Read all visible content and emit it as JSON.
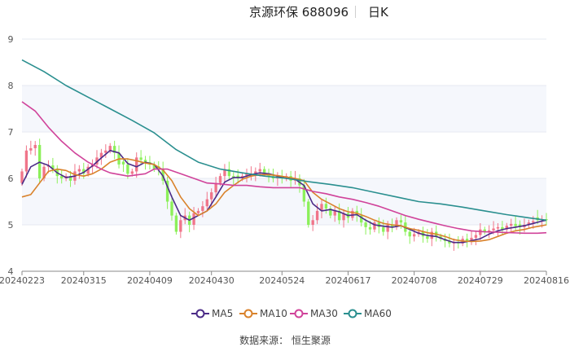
{
  "header": {
    "title": "京源环保 688096",
    "period": "日K"
  },
  "source": "数据来源： 恒生聚源",
  "colors": {
    "up": "#f0758a",
    "down": "#8cf05a",
    "grid": "#e6e9f2",
    "band": "#f5f7fc",
    "axis": "#8a8a8a"
  },
  "chart_data": {
    "type": "candlestick",
    "title": "",
    "ylim": [
      4,
      9
    ],
    "yticks": [
      4,
      5,
      6,
      7,
      8,
      9
    ],
    "xtick_labels": [
      "20240223",
      "20240315",
      "20240409",
      "20240430",
      "20240524",
      "20240617",
      "20240708",
      "20240729",
      "20240816"
    ],
    "xtick_index": [
      0,
      14,
      29,
      43,
      59,
      74,
      89,
      104,
      119
    ],
    "legend_placement": "bottom-center",
    "closes": [
      6.15,
      6.6,
      6.65,
      6.72,
      6.0,
      6.25,
      6.28,
      6.2,
      6.05,
      6.0,
      6.05,
      5.95,
      6.15,
      6.2,
      6.1,
      6.25,
      6.3,
      6.45,
      6.55,
      6.6,
      6.7,
      6.55,
      6.3,
      6.3,
      6.1,
      6.15,
      6.45,
      6.4,
      6.35,
      6.3,
      6.2,
      6.2,
      5.95,
      5.5,
      5.2,
      4.85,
      5.1,
      5.2,
      5.0,
      5.25,
      5.3,
      5.4,
      5.55,
      5.7,
      5.9,
      6.05,
      6.2,
      6.05,
      6.0,
      6.0,
      6.05,
      6.1,
      6.1,
      6.15,
      6.2,
      6.1,
      6.05,
      6.0,
      6.05,
      6.0,
      6.05,
      5.95,
      6.0,
      5.85,
      5.5,
      5.0,
      5.1,
      5.3,
      5.45,
      5.35,
      5.2,
      5.3,
      5.1,
      5.25,
      5.15,
      5.3,
      5.2,
      5.05,
      4.95,
      4.9,
      5.05,
      4.95,
      4.85,
      5.0,
      4.95,
      5.1,
      5.05,
      4.85,
      4.75,
      4.8,
      4.85,
      4.75,
      4.7,
      4.85,
      4.75,
      4.7,
      4.65,
      4.6,
      4.62,
      4.6,
      4.7,
      4.65,
      4.72,
      4.78,
      4.9,
      4.85,
      4.88,
      4.92,
      4.95,
      4.9,
      4.98,
      5.02,
      4.97,
      4.95,
      5.0,
      5.05,
      5.08,
      5.1,
      5.12,
      5.1
    ],
    "ma_labels": [
      "MA5",
      "MA10",
      "MA30",
      "MA60"
    ],
    "series": [
      {
        "name": "MA5",
        "color": "#4b2b87",
        "points": [
          [
            0,
            5.87
          ],
          [
            2,
            6.25
          ],
          [
            4,
            6.35
          ],
          [
            6,
            6.28
          ],
          [
            8,
            6.12
          ],
          [
            10,
            6.02
          ],
          [
            12,
            6.05
          ],
          [
            14,
            6.13
          ],
          [
            16,
            6.27
          ],
          [
            18,
            6.44
          ],
          [
            20,
            6.6
          ],
          [
            22,
            6.55
          ],
          [
            24,
            6.32
          ],
          [
            26,
            6.25
          ],
          [
            28,
            6.35
          ],
          [
            30,
            6.3
          ],
          [
            32,
            6.05
          ],
          [
            34,
            5.6
          ],
          [
            36,
            5.2
          ],
          [
            38,
            5.1
          ],
          [
            40,
            5.2
          ],
          [
            42,
            5.3
          ],
          [
            44,
            5.6
          ],
          [
            46,
            5.92
          ],
          [
            48,
            6.02
          ],
          [
            50,
            6.02
          ],
          [
            52,
            6.08
          ],
          [
            54,
            6.12
          ],
          [
            56,
            6.1
          ],
          [
            58,
            6.05
          ],
          [
            60,
            6.0
          ],
          [
            62,
            5.98
          ],
          [
            64,
            5.85
          ],
          [
            66,
            5.45
          ],
          [
            68,
            5.3
          ],
          [
            70,
            5.33
          ],
          [
            72,
            5.28
          ],
          [
            74,
            5.2
          ],
          [
            76,
            5.22
          ],
          [
            78,
            5.1
          ],
          [
            80,
            5.0
          ],
          [
            82,
            4.97
          ],
          [
            84,
            4.95
          ],
          [
            86,
            4.98
          ],
          [
            88,
            4.9
          ],
          [
            90,
            4.82
          ],
          [
            92,
            4.77
          ],
          [
            94,
            4.75
          ],
          [
            96,
            4.68
          ],
          [
            98,
            4.62
          ],
          [
            100,
            4.62
          ],
          [
            102,
            4.66
          ],
          [
            104,
            4.7
          ],
          [
            106,
            4.8
          ],
          [
            108,
            4.87
          ],
          [
            110,
            4.92
          ],
          [
            112,
            4.95
          ],
          [
            114,
            4.98
          ],
          [
            116,
            5.03
          ],
          [
            118,
            5.08
          ],
          [
            119,
            5.1
          ]
        ]
      },
      {
        "name": "MA10",
        "color": "#d9822b",
        "points": [
          [
            0,
            5.6
          ],
          [
            2,
            5.65
          ],
          [
            4,
            5.9
          ],
          [
            6,
            6.15
          ],
          [
            8,
            6.2
          ],
          [
            10,
            6.17
          ],
          [
            12,
            6.08
          ],
          [
            14,
            6.05
          ],
          [
            16,
            6.1
          ],
          [
            18,
            6.2
          ],
          [
            20,
            6.35
          ],
          [
            22,
            6.42
          ],
          [
            24,
            6.42
          ],
          [
            26,
            6.38
          ],
          [
            28,
            6.33
          ],
          [
            30,
            6.3
          ],
          [
            32,
            6.18
          ],
          [
            34,
            5.95
          ],
          [
            36,
            5.6
          ],
          [
            38,
            5.35
          ],
          [
            40,
            5.2
          ],
          [
            42,
            5.3
          ],
          [
            44,
            5.45
          ],
          [
            46,
            5.7
          ],
          [
            48,
            5.85
          ],
          [
            50,
            5.98
          ],
          [
            52,
            6.05
          ],
          [
            54,
            6.08
          ],
          [
            56,
            6.08
          ],
          [
            58,
            6.06
          ],
          [
            60,
            6.03
          ],
          [
            62,
            6.0
          ],
          [
            64,
            5.95
          ],
          [
            66,
            5.7
          ],
          [
            68,
            5.55
          ],
          [
            70,
            5.45
          ],
          [
            72,
            5.35
          ],
          [
            74,
            5.28
          ],
          [
            76,
            5.25
          ],
          [
            78,
            5.18
          ],
          [
            80,
            5.1
          ],
          [
            82,
            5.03
          ],
          [
            84,
            5.0
          ],
          [
            86,
            4.98
          ],
          [
            88,
            4.92
          ],
          [
            90,
            4.88
          ],
          [
            92,
            4.83
          ],
          [
            94,
            4.8
          ],
          [
            96,
            4.75
          ],
          [
            98,
            4.68
          ],
          [
            100,
            4.65
          ],
          [
            102,
            4.64
          ],
          [
            104,
            4.65
          ],
          [
            106,
            4.68
          ],
          [
            108,
            4.75
          ],
          [
            110,
            4.82
          ],
          [
            112,
            4.87
          ],
          [
            114,
            4.9
          ],
          [
            116,
            4.95
          ],
          [
            118,
            4.98
          ],
          [
            119,
            5.0
          ]
        ]
      },
      {
        "name": "MA30",
        "color": "#d0439a",
        "points": [
          [
            0,
            7.65
          ],
          [
            3,
            7.45
          ],
          [
            6,
            7.1
          ],
          [
            9,
            6.8
          ],
          [
            12,
            6.55
          ],
          [
            15,
            6.35
          ],
          [
            18,
            6.2
          ],
          [
            20,
            6.12
          ],
          [
            24,
            6.05
          ],
          [
            28,
            6.1
          ],
          [
            30,
            6.2
          ],
          [
            33,
            6.2
          ],
          [
            36,
            6.1
          ],
          [
            39,
            6.0
          ],
          [
            42,
            5.9
          ],
          [
            45,
            5.88
          ],
          [
            48,
            5.85
          ],
          [
            51,
            5.85
          ],
          [
            54,
            5.82
          ],
          [
            57,
            5.8
          ],
          [
            60,
            5.8
          ],
          [
            63,
            5.8
          ],
          [
            66,
            5.72
          ],
          [
            69,
            5.67
          ],
          [
            72,
            5.6
          ],
          [
            75,
            5.55
          ],
          [
            78,
            5.48
          ],
          [
            81,
            5.4
          ],
          [
            84,
            5.3
          ],
          [
            87,
            5.2
          ],
          [
            90,
            5.12
          ],
          [
            93,
            5.05
          ],
          [
            96,
            4.98
          ],
          [
            99,
            4.92
          ],
          [
            102,
            4.87
          ],
          [
            105,
            4.85
          ],
          [
            108,
            4.84
          ],
          [
            111,
            4.83
          ],
          [
            114,
            4.82
          ],
          [
            117,
            4.82
          ],
          [
            119,
            4.83
          ]
        ]
      },
      {
        "name": "MA60",
        "color": "#2a8f8f",
        "points": [
          [
            0,
            8.55
          ],
          [
            5,
            8.3
          ],
          [
            10,
            8.0
          ],
          [
            15,
            7.75
          ],
          [
            20,
            7.5
          ],
          [
            25,
            7.25
          ],
          [
            30,
            6.98
          ],
          [
            35,
            6.62
          ],
          [
            40,
            6.35
          ],
          [
            45,
            6.2
          ],
          [
            50,
            6.12
          ],
          [
            55,
            6.05
          ],
          [
            60,
            6.0
          ],
          [
            65,
            5.93
          ],
          [
            70,
            5.87
          ],
          [
            75,
            5.8
          ],
          [
            80,
            5.7
          ],
          [
            85,
            5.6
          ],
          [
            90,
            5.5
          ],
          [
            95,
            5.45
          ],
          [
            100,
            5.38
          ],
          [
            105,
            5.3
          ],
          [
            110,
            5.22
          ],
          [
            115,
            5.15
          ],
          [
            119,
            5.1
          ]
        ]
      }
    ]
  }
}
